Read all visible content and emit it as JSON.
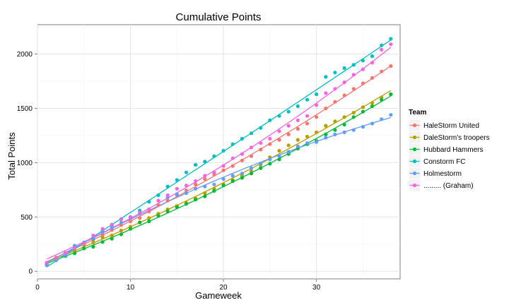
{
  "chart_data": {
    "type": "scatter",
    "title": "Cumulative Points",
    "xlabel": "Gameweek",
    "ylabel": "Total Points",
    "xlim": [
      0,
      39
    ],
    "ylim": [
      -70,
      2270
    ],
    "x_ticks": [
      0,
      10,
      20,
      30
    ],
    "y_ticks": [
      0,
      500,
      1000,
      1500,
      2000
    ],
    "grid": true,
    "legend_title": "Team",
    "legend_position": "right",
    "trend_lines": "smoothed fit per series",
    "series": [
      {
        "name": "HaleStorm United",
        "color": "#F8766D",
        "x": [
          1,
          2,
          3,
          4,
          5,
          6,
          7,
          8,
          9,
          10,
          11,
          12,
          13,
          14,
          15,
          16,
          17,
          18,
          19,
          20,
          21,
          22,
          23,
          24,
          25,
          26,
          27,
          28,
          29,
          30,
          31,
          32,
          33,
          34,
          35,
          36,
          37,
          38
        ],
        "y": [
          75,
          125,
          165,
          200,
          250,
          290,
          335,
          380,
          425,
          460,
          490,
          550,
          610,
          650,
          700,
          745,
          800,
          850,
          890,
          930,
          970,
          1020,
          1060,
          1120,
          1170,
          1210,
          1260,
          1310,
          1360,
          1420,
          1500,
          1560,
          1620,
          1680,
          1730,
          1780,
          1840,
          1890
        ]
      },
      {
        "name": "DaleStorm's troopers",
        "color": "#B79F00",
        "x": [
          1,
          2,
          3,
          4,
          5,
          6,
          7,
          8,
          9,
          10,
          11,
          12,
          13,
          14,
          15,
          16,
          17,
          18,
          19,
          20,
          21,
          22,
          23,
          24,
          25,
          26,
          27,
          28,
          29,
          30,
          31,
          32,
          33,
          34,
          35,
          36,
          37,
          38
        ],
        "y": [
          70,
          125,
          155,
          190,
          240,
          265,
          310,
          330,
          375,
          410,
          450,
          490,
          530,
          570,
          600,
          630,
          670,
          720,
          760,
          800,
          840,
          880,
          920,
          980,
          1050,
          1110,
          1160,
          1210,
          1240,
          1280,
          1340,
          1380,
          1420,
          1460,
          1510,
          1550,
          1600,
          1630
        ]
      },
      {
        "name": "Hubbard Hammers",
        "color": "#00BA38",
        "x": [
          1,
          2,
          3,
          4,
          5,
          6,
          7,
          8,
          9,
          10,
          11,
          12,
          13,
          14,
          15,
          16,
          17,
          18,
          19,
          20,
          21,
          22,
          23,
          24,
          25,
          26,
          27,
          28,
          29,
          30,
          31,
          32,
          33,
          34,
          35,
          36,
          37,
          38
        ],
        "y": [
          65,
          110,
          140,
          165,
          210,
          225,
          270,
          300,
          340,
          390,
          450,
          460,
          510,
          550,
          590,
          620,
          660,
          690,
          740,
          790,
          830,
          860,
          900,
          950,
          990,
          1030,
          1080,
          1130,
          1170,
          1200,
          1260,
          1300,
          1350,
          1420,
          1470,
          1520,
          1580,
          1630
        ]
      },
      {
        "name": "Constorm FC",
        "color": "#00BFC4",
        "x": [
          1,
          2,
          3,
          4,
          5,
          6,
          7,
          8,
          9,
          10,
          11,
          12,
          13,
          14,
          15,
          16,
          17,
          18,
          19,
          20,
          21,
          22,
          23,
          24,
          25,
          26,
          27,
          28,
          29,
          30,
          31,
          32,
          33,
          34,
          35,
          36,
          37,
          38
        ],
        "y": [
          55,
          100,
          145,
          235,
          260,
          300,
          370,
          420,
          480,
          500,
          560,
          640,
          700,
          780,
          840,
          910,
          980,
          1010,
          1060,
          1110,
          1170,
          1220,
          1270,
          1320,
          1390,
          1430,
          1470,
          1520,
          1580,
          1630,
          1790,
          1830,
          1870,
          1900,
          1940,
          1980,
          2080,
          2140
        ]
      },
      {
        "name": "Holmestorm",
        "color": "#619CFF",
        "x": [
          1,
          2,
          3,
          4,
          5,
          6,
          7,
          8,
          9,
          10,
          11,
          12,
          13,
          14,
          15,
          16,
          17,
          18,
          19,
          20,
          21,
          22,
          23,
          24,
          25,
          26,
          27,
          28,
          29,
          30,
          31,
          32,
          33,
          34,
          35,
          36,
          37,
          38
        ],
        "y": [
          55,
          100,
          150,
          230,
          265,
          310,
          360,
          400,
          450,
          490,
          530,
          570,
          650,
          680,
          710,
          720,
          760,
          780,
          800,
          850,
          880,
          900,
          950,
          990,
          1030,
          1060,
          1100,
          1150,
          1180,
          1190,
          1230,
          1260,
          1280,
          1300,
          1330,
          1360,
          1400,
          1440
        ]
      },
      {
        "name": "......... (Graham)",
        "color": "#F564E3",
        "x": [
          1,
          2,
          3,
          4,
          5,
          6,
          7,
          8,
          9,
          10,
          11,
          12,
          13,
          14,
          15,
          16,
          17,
          18,
          19,
          20,
          21,
          22,
          23,
          24,
          25,
          26,
          27,
          28,
          29,
          30,
          31,
          32,
          33,
          34,
          35,
          36,
          37,
          38
        ],
        "y": [
          80,
          120,
          170,
          215,
          255,
          330,
          390,
          430,
          480,
          500,
          540,
          570,
          650,
          700,
          760,
          790,
          830,
          880,
          910,
          970,
          1040,
          1080,
          1140,
          1180,
          1220,
          1290,
          1340,
          1390,
          1430,
          1530,
          1640,
          1680,
          1740,
          1810,
          1860,
          1920,
          2040,
          2090
        ]
      }
    ]
  }
}
